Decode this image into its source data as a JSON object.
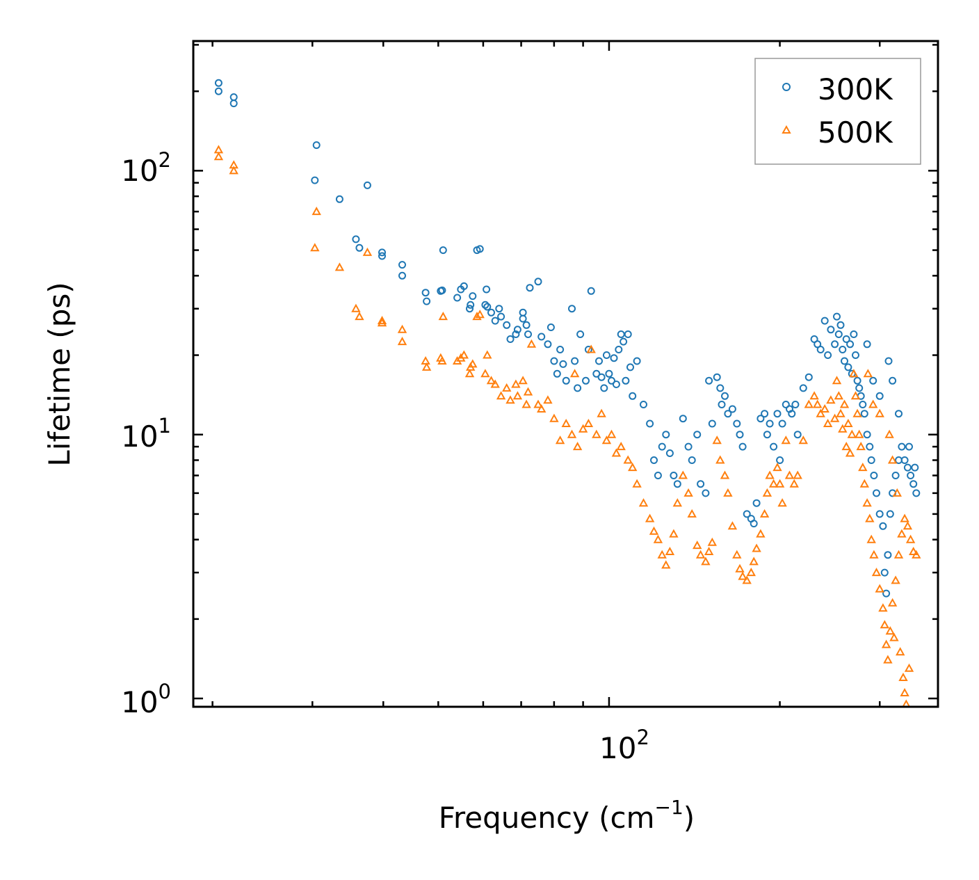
{
  "chart_data": {
    "type": "scatter",
    "title": "",
    "xlabel": "Frequency (cm",
    "xlabel_sup": "−1",
    "xlabel_end": ")",
    "ylabel": "Lifetime (ps)",
    "xscale": "log",
    "yscale": "log",
    "xlim": [
      18.5,
      380
    ],
    "ylim": [
      0.93,
      310
    ],
    "x_major_ticks": [
      {
        "value": 100,
        "base": "10",
        "exp": "2"
      }
    ],
    "y_major_ticks": [
      {
        "value": 1,
        "base": "10",
        "exp": "0"
      },
      {
        "value": 10,
        "base": "10",
        "exp": "1"
      },
      {
        "value": 100,
        "base": "10",
        "exp": "2"
      }
    ],
    "legend_position": "top-right",
    "series": [
      {
        "name": "300K",
        "color": "#1f77b4",
        "marker": "circle",
        "points": [
          [
            20.5,
            215
          ],
          [
            20.5,
            200
          ],
          [
            21.8,
            190
          ],
          [
            21.8,
            180
          ],
          [
            30.5,
            125
          ],
          [
            30.3,
            92
          ],
          [
            33.5,
            78
          ],
          [
            37.5,
            88
          ],
          [
            35.8,
            55
          ],
          [
            36.3,
            51
          ],
          [
            39.8,
            49
          ],
          [
            39.8,
            47.5
          ],
          [
            43.2,
            44
          ],
          [
            43.2,
            40
          ],
          [
            47.5,
            34.5
          ],
          [
            47.7,
            32
          ],
          [
            50.5,
            35
          ],
          [
            50.8,
            35.2
          ],
          [
            51,
            50
          ],
          [
            54,
            33
          ],
          [
            54.8,
            35.5
          ],
          [
            55.5,
            36.5
          ],
          [
            56.8,
            30
          ],
          [
            57,
            31
          ],
          [
            57.5,
            33.5
          ],
          [
            58.5,
            50
          ],
          [
            59.2,
            50.5
          ],
          [
            60.5,
            31
          ],
          [
            60.8,
            35.5
          ],
          [
            61,
            30.5
          ],
          [
            62,
            29
          ],
          [
            63,
            27
          ],
          [
            64.5,
            28
          ],
          [
            64,
            30
          ],
          [
            66,
            26
          ],
          [
            67,
            23
          ],
          [
            68.5,
            24
          ],
          [
            69,
            25
          ],
          [
            70.5,
            27.5
          ],
          [
            70.5,
            29
          ],
          [
            71.5,
            26
          ],
          [
            72,
            24
          ],
          [
            72.5,
            36
          ],
          [
            75,
            38
          ],
          [
            76,
            23.5
          ],
          [
            78,
            22
          ],
          [
            79,
            25.5
          ],
          [
            80,
            19
          ],
          [
            81,
            17
          ],
          [
            82,
            21
          ],
          [
            83,
            18.5
          ],
          [
            84,
            16
          ],
          [
            86,
            30
          ],
          [
            87,
            19
          ],
          [
            88,
            15
          ],
          [
            89,
            24
          ],
          [
            91,
            16
          ],
          [
            92,
            21
          ],
          [
            93,
            35
          ],
          [
            95,
            17
          ],
          [
            96,
            19
          ],
          [
            97,
            16.5
          ],
          [
            98,
            15
          ],
          [
            99,
            20
          ],
          [
            100,
            17
          ],
          [
            101,
            16
          ],
          [
            102,
            19.5
          ],
          [
            103,
            15.5
          ],
          [
            104,
            21
          ],
          [
            105,
            24
          ],
          [
            106,
            22.5
          ],
          [
            107,
            16
          ],
          [
            108,
            24
          ],
          [
            109,
            18
          ],
          [
            110,
            14
          ],
          [
            112,
            19
          ],
          [
            115,
            13
          ],
          [
            118,
            11
          ],
          [
            120,
            8
          ],
          [
            122,
            7
          ],
          [
            124,
            9
          ],
          [
            126,
            10
          ],
          [
            128,
            8.5
          ],
          [
            130,
            7
          ],
          [
            132,
            6.5
          ],
          [
            135,
            11.5
          ],
          [
            138,
            9
          ],
          [
            140,
            8
          ],
          [
            143,
            10
          ],
          [
            145,
            6.5
          ],
          [
            148,
            6
          ],
          [
            150,
            16
          ],
          [
            152,
            11
          ],
          [
            155,
            16.5
          ],
          [
            157,
            15
          ],
          [
            158,
            13
          ],
          [
            160,
            14
          ],
          [
            162,
            12
          ],
          [
            165,
            12.5
          ],
          [
            168,
            11
          ],
          [
            170,
            10
          ],
          [
            172,
            9
          ],
          [
            175,
            5
          ],
          [
            178,
            4.8
          ],
          [
            180,
            4.6
          ],
          [
            182,
            5.5
          ],
          [
            185,
            11.5
          ],
          [
            188,
            12
          ],
          [
            190,
            10
          ],
          [
            192,
            11
          ],
          [
            195,
            9
          ],
          [
            198,
            12
          ],
          [
            200,
            8
          ],
          [
            202,
            11
          ],
          [
            205,
            13
          ],
          [
            208,
            12.5
          ],
          [
            210,
            12
          ],
          [
            213,
            13
          ],
          [
            215,
            10
          ],
          [
            220,
            15
          ],
          [
            225,
            16.5
          ],
          [
            230,
            23
          ],
          [
            233,
            22
          ],
          [
            236,
            21
          ],
          [
            240,
            27
          ],
          [
            243,
            20
          ],
          [
            246,
            25
          ],
          [
            250,
            22
          ],
          [
            252,
            28
          ],
          [
            254,
            24
          ],
          [
            256,
            26
          ],
          [
            258,
            21
          ],
          [
            260,
            19
          ],
          [
            262,
            23
          ],
          [
            264,
            18
          ],
          [
            266,
            22
          ],
          [
            268,
            17
          ],
          [
            270,
            24
          ],
          [
            272,
            20
          ],
          [
            274,
            16
          ],
          [
            276,
            15
          ],
          [
            278,
            14
          ],
          [
            280,
            13
          ],
          [
            282,
            12
          ],
          [
            285,
            10
          ],
          [
            288,
            9
          ],
          [
            290,
            8
          ],
          [
            293,
            7
          ],
          [
            296,
            6
          ],
          [
            300,
            5
          ],
          [
            304,
            4.5
          ],
          [
            306,
            3
          ],
          [
            308,
            2.5
          ],
          [
            310,
            3.5
          ],
          [
            313,
            5
          ],
          [
            316,
            6
          ],
          [
            320,
            7
          ],
          [
            324,
            8
          ],
          [
            328,
            9
          ],
          [
            332,
            8
          ],
          [
            336,
            7.5
          ],
          [
            340,
            7
          ],
          [
            344,
            6.5
          ],
          [
            348,
            6
          ],
          [
            285,
            22
          ],
          [
            292,
            16
          ],
          [
            300,
            14
          ],
          [
            311,
            19
          ],
          [
            316,
            16
          ],
          [
            324,
            12
          ],
          [
            338,
            9
          ],
          [
            346,
            7.5
          ]
        ]
      },
      {
        "name": "500K",
        "color": "#ff7f0e",
        "marker": "triangle",
        "points": [
          [
            20.5,
            120
          ],
          [
            20.5,
            113
          ],
          [
            21.8,
            105
          ],
          [
            21.8,
            100
          ],
          [
            30.5,
            70
          ],
          [
            30.3,
            51
          ],
          [
            33.5,
            43
          ],
          [
            37.5,
            49
          ],
          [
            35.8,
            30
          ],
          [
            36.3,
            28
          ],
          [
            39.8,
            27
          ],
          [
            39.8,
            26.5
          ],
          [
            43.2,
            25
          ],
          [
            43.2,
            22.5
          ],
          [
            47.5,
            19
          ],
          [
            47.7,
            18
          ],
          [
            50.5,
            19.5
          ],
          [
            50.8,
            19
          ],
          [
            51,
            28
          ],
          [
            54,
            19
          ],
          [
            54.8,
            19.5
          ],
          [
            55.5,
            20
          ],
          [
            56.8,
            17
          ],
          [
            57,
            18
          ],
          [
            57.5,
            18.5
          ],
          [
            58.5,
            28
          ],
          [
            59.2,
            28.5
          ],
          [
            60.5,
            17
          ],
          [
            61,
            20
          ],
          [
            62,
            16
          ],
          [
            63,
            15.5
          ],
          [
            64.5,
            14
          ],
          [
            66,
            15
          ],
          [
            67,
            13.5
          ],
          [
            68.5,
            15.5
          ],
          [
            69,
            14
          ],
          [
            70.5,
            16
          ],
          [
            71.5,
            13
          ],
          [
            72,
            14.5
          ],
          [
            73,
            22
          ],
          [
            75,
            13
          ],
          [
            76,
            12.5
          ],
          [
            78,
            13.5
          ],
          [
            80,
            11.5
          ],
          [
            82,
            9.5
          ],
          [
            84,
            11
          ],
          [
            86,
            10
          ],
          [
            87,
            17
          ],
          [
            88,
            9
          ],
          [
            90,
            10.5
          ],
          [
            92,
            11
          ],
          [
            93,
            21
          ],
          [
            95,
            10
          ],
          [
            97,
            12
          ],
          [
            99,
            9.5
          ],
          [
            101,
            10
          ],
          [
            103,
            8.5
          ],
          [
            105,
            9
          ],
          [
            108,
            8
          ],
          [
            110,
            7.5
          ],
          [
            112,
            6.5
          ],
          [
            115,
            5.5
          ],
          [
            118,
            4.8
          ],
          [
            120,
            4.3
          ],
          [
            122,
            4
          ],
          [
            124,
            3.5
          ],
          [
            126,
            3.2
          ],
          [
            128,
            3.6
          ],
          [
            130,
            4.2
          ],
          [
            132,
            5.5
          ],
          [
            135,
            7
          ],
          [
            138,
            6
          ],
          [
            140,
            5
          ],
          [
            143,
            3.8
          ],
          [
            145,
            3.5
          ],
          [
            148,
            3.3
          ],
          [
            150,
            3.6
          ],
          [
            152,
            3.9
          ],
          [
            155,
            9.5
          ],
          [
            157,
            8
          ],
          [
            160,
            7
          ],
          [
            162,
            6
          ],
          [
            165,
            4.5
          ],
          [
            168,
            3.5
          ],
          [
            170,
            3.1
          ],
          [
            172,
            2.9
          ],
          [
            175,
            2.8
          ],
          [
            178,
            3.0
          ],
          [
            180,
            3.3
          ],
          [
            182,
            3.7
          ],
          [
            185,
            4.2
          ],
          [
            188,
            5
          ],
          [
            190,
            6
          ],
          [
            192,
            7
          ],
          [
            195,
            6.5
          ],
          [
            198,
            7.5
          ],
          [
            200,
            6.5
          ],
          [
            202,
            5.5
          ],
          [
            205,
            9.5
          ],
          [
            208,
            7
          ],
          [
            212,
            6.5
          ],
          [
            215,
            7
          ],
          [
            220,
            9.5
          ],
          [
            225,
            13
          ],
          [
            230,
            14
          ],
          [
            233,
            13
          ],
          [
            236,
            12
          ],
          [
            240,
            12.5
          ],
          [
            243,
            11
          ],
          [
            246,
            13.5
          ],
          [
            250,
            11.5
          ],
          [
            252,
            16
          ],
          [
            254,
            14
          ],
          [
            256,
            12
          ],
          [
            258,
            10.5
          ],
          [
            260,
            13
          ],
          [
            262,
            9
          ],
          [
            264,
            11
          ],
          [
            266,
            8.5
          ],
          [
            268,
            10
          ],
          [
            270,
            17
          ],
          [
            272,
            14
          ],
          [
            274,
            12
          ],
          [
            276,
            10
          ],
          [
            278,
            9
          ],
          [
            280,
            7.5
          ],
          [
            282,
            6.5
          ],
          [
            285,
            5.5
          ],
          [
            288,
            4.8
          ],
          [
            290,
            4
          ],
          [
            293,
            3.5
          ],
          [
            296,
            3
          ],
          [
            300,
            2.6
          ],
          [
            304,
            2.2
          ],
          [
            306,
            1.9
          ],
          [
            308,
            1.6
          ],
          [
            310,
            1.4
          ],
          [
            313,
            1.8
          ],
          [
            316,
            2.3
          ],
          [
            320,
            2.8
          ],
          [
            324,
            3.5
          ],
          [
            328,
            4.2
          ],
          [
            332,
            4.8
          ],
          [
            336,
            4.5
          ],
          [
            340,
            4
          ],
          [
            344,
            3.6
          ],
          [
            348,
            3.5
          ],
          [
            286,
            17
          ],
          [
            292,
            13
          ],
          [
            300,
            12
          ],
          [
            312,
            10
          ],
          [
            316,
            8
          ],
          [
            322,
            6
          ],
          [
            326,
            1.5
          ],
          [
            332,
            1.05
          ],
          [
            334,
            0.95
          ],
          [
            338,
            1.3
          ],
          [
            330,
            1.2
          ],
          [
            318,
            1.7
          ]
        ]
      }
    ]
  }
}
